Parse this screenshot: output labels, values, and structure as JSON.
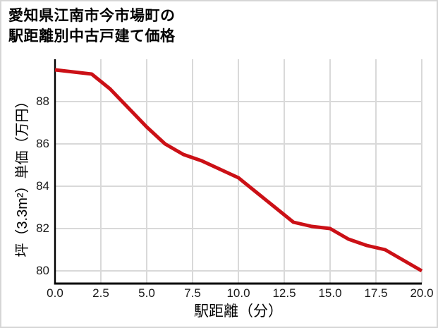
{
  "chart_data": {
    "type": "line",
    "title": "愛知県江南市今市場町の\n駅距離別中古戸建て価格",
    "xlabel": "駅距離（分）",
    "ylabel": "坪（3.3m²）単価（万円）",
    "x": [
      0,
      1,
      2,
      3,
      4,
      5,
      6,
      7,
      8,
      9,
      10,
      11,
      12,
      13,
      14,
      15,
      16,
      17,
      18,
      19,
      20
    ],
    "values": [
      89.5,
      89.4,
      89.3,
      88.6,
      87.7,
      86.8,
      86.0,
      85.5,
      85.2,
      84.8,
      84.4,
      83.7,
      83.0,
      82.3,
      82.1,
      82.0,
      81.5,
      81.2,
      81.0,
      80.5,
      80.0
    ],
    "xlim": [
      0,
      20
    ],
    "ylim": [
      79.4,
      90.6
    ],
    "xticks": {
      "values": [
        0,
        2.5,
        5,
        7.5,
        10,
        12.5,
        15,
        17.5,
        20
      ],
      "labels": [
        "0.0",
        "2.5",
        "5.0",
        "7.5",
        "10.0",
        "12.5",
        "15.0",
        "17.5",
        "20.0"
      ]
    },
    "yticks": {
      "values": [
        80,
        82,
        84,
        86,
        88
      ],
      "labels": [
        "80",
        "82",
        "84",
        "86",
        "88"
      ]
    },
    "grid": true,
    "legend": false,
    "line_width": 5,
    "colors": {
      "line": "#cb1016",
      "grid": "#d9d9d9",
      "axis": "#000000",
      "tick_text": "#1a1a1a",
      "background": "#ffffff",
      "border": "#d6d6d6"
    }
  }
}
